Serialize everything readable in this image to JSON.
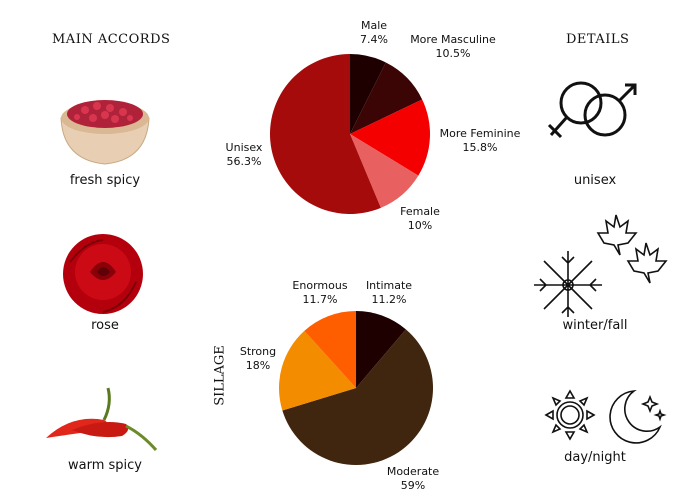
{
  "main_accords": {
    "title": "MAIN ACCORDS",
    "items": [
      {
        "label": "fresh spicy",
        "icon": "pink-pepper-bowl"
      },
      {
        "label": "rose",
        "icon": "red-rose"
      },
      {
        "label": "warm spicy",
        "icon": "red-chili-peppers"
      }
    ]
  },
  "details": {
    "title": "DETAILS",
    "items": [
      {
        "label": "unisex",
        "icon": "gender-symbols-icon"
      },
      {
        "label": "winter/fall",
        "icon": "snowflake-maple-leaf-icon"
      },
      {
        "label": "day/night",
        "icon": "sun-moon-icon"
      }
    ]
  },
  "chart_data": [
    {
      "type": "pie",
      "title": "",
      "categories": [
        "Male",
        "More Masculine",
        "More Feminine",
        "Female",
        "Unisex"
      ],
      "values": [
        7.4,
        10.5,
        15.8,
        10,
        56.3
      ],
      "labels": [
        "7.4%",
        "10.5%",
        "15.8%",
        "10%",
        "56.3%"
      ],
      "colors": [
        "#1f0000",
        "#3b0505",
        "#f50000",
        "#e86060",
        "#a50b0b"
      ]
    },
    {
      "type": "pie",
      "title": "SILLAGE",
      "categories": [
        "Intimate",
        "Moderate",
        "Strong",
        "Enormous"
      ],
      "values": [
        11.2,
        59,
        18,
        11.7
      ],
      "labels": [
        "11.2%",
        "59%",
        "18%",
        "11.7%"
      ],
      "colors": [
        "#1f0000",
        "#40260f",
        "#f48c00",
        "#ff5e00"
      ]
    }
  ]
}
